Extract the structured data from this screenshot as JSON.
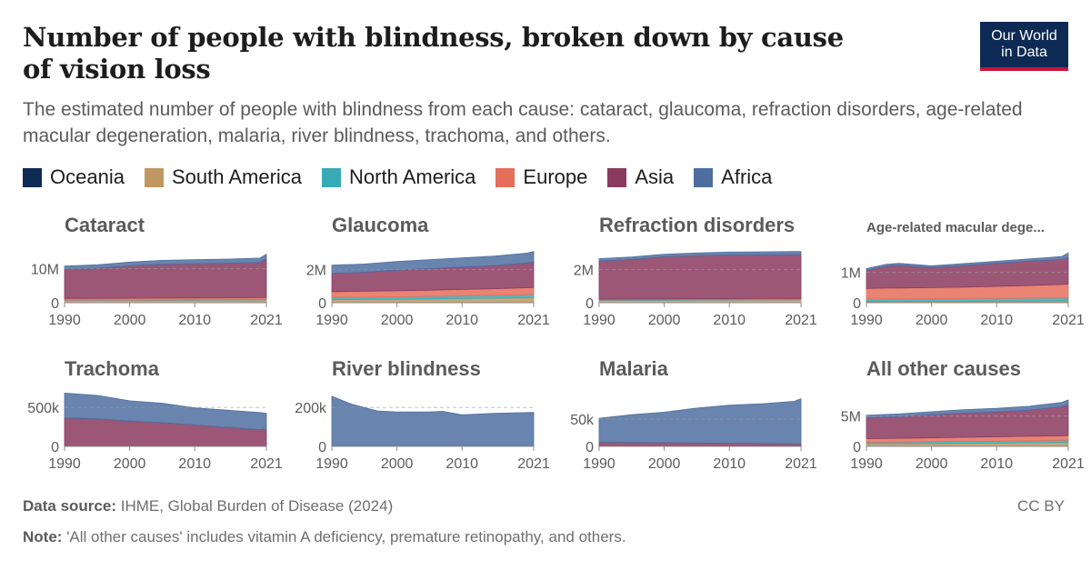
{
  "header": {
    "title": "Number of people with blindness, broken down by cause of vision loss",
    "subtitle": "The estimated number of people with blindness from each cause: cataract, glaucoma, refraction disorders, age-related macular degeneration, malaria, river blindness, trachoma, and others.",
    "logo_line1": "Our World",
    "logo_line2": "in Data"
  },
  "legend": [
    {
      "name": "Oceania",
      "color": "#0c2a54"
    },
    {
      "name": "South America",
      "color": "#c09760"
    },
    {
      "name": "North America",
      "color": "#38aab6"
    },
    {
      "name": "Europe",
      "color": "#e56e5a"
    },
    {
      "name": "Asia",
      "color": "#8b3a5f"
    },
    {
      "name": "Africa",
      "color": "#4f6ea0"
    }
  ],
  "footer": {
    "source_label": "Data source:",
    "source_text": "IHME, Global Burden of Disease (2024)",
    "note_label": "Note:",
    "note_text": "'All other causes' includes vitamin A deficiency, premature retinopathy, and others.",
    "license": "CC BY"
  },
  "chart_data": [
    {
      "type": "area",
      "title": "Cataract",
      "x": [
        1990,
        1995,
        2000,
        2005,
        2010,
        2015,
        2020,
        2021
      ],
      "ylim": [
        0,
        16000000
      ],
      "yticks": [
        0,
        10000000
      ],
      "ytick_labels": [
        "0",
        "10M"
      ],
      "xticks": [
        1990,
        2000,
        2010,
        2021
      ],
      "series": [
        {
          "name": "Oceania",
          "values": [
            30000,
            30000,
            35000,
            35000,
            40000,
            40000,
            45000,
            45000
          ]
        },
        {
          "name": "South America",
          "values": [
            600000,
            620000,
            650000,
            680000,
            700000,
            720000,
            750000,
            760000
          ]
        },
        {
          "name": "North America",
          "values": [
            120000,
            120000,
            125000,
            130000,
            135000,
            140000,
            145000,
            150000
          ]
        },
        {
          "name": "Europe",
          "values": [
            500000,
            510000,
            520000,
            530000,
            540000,
            550000,
            560000,
            570000
          ]
        },
        {
          "name": "Asia",
          "values": [
            8500000,
            8800000,
            9500000,
            9900000,
            10000000,
            10100000,
            10300000,
            11300000
          ]
        },
        {
          "name": "Africa",
          "values": [
            1000000,
            1050000,
            1100000,
            1150000,
            1200000,
            1250000,
            1300000,
            1400000
          ]
        }
      ]
    },
    {
      "type": "area",
      "title": "Glaucoma",
      "x": [
        1990,
        1995,
        2000,
        2005,
        2010,
        2015,
        2020,
        2021
      ],
      "ylim": [
        0,
        3300000
      ],
      "yticks": [
        0,
        2000000
      ],
      "ytick_labels": [
        "0",
        "2M"
      ],
      "xticks": [
        1990,
        2000,
        2010,
        2021
      ],
      "series": [
        {
          "name": "Oceania",
          "values": [
            10000,
            10000,
            10000,
            10000,
            15000,
            15000,
            15000,
            15000
          ]
        },
        {
          "name": "South America",
          "values": [
            180000,
            190000,
            200000,
            220000,
            240000,
            260000,
            290000,
            300000
          ]
        },
        {
          "name": "North America",
          "values": [
            130000,
            135000,
            140000,
            150000,
            160000,
            170000,
            180000,
            185000
          ]
        },
        {
          "name": "Europe",
          "values": [
            350000,
            360000,
            370000,
            380000,
            390000,
            400000,
            420000,
            430000
          ]
        },
        {
          "name": "Asia",
          "values": [
            1100000,
            1150000,
            1250000,
            1300000,
            1350000,
            1400000,
            1500000,
            1550000
          ]
        },
        {
          "name": "Africa",
          "values": [
            500000,
            500000,
            520000,
            540000,
            560000,
            580000,
            600000,
            610000
          ]
        }
      ]
    },
    {
      "type": "area",
      "title": "Refraction disorders",
      "x": [
        1990,
        1995,
        2000,
        2005,
        2010,
        2015,
        2020,
        2021
      ],
      "ylim": [
        0,
        3300000
      ],
      "yticks": [
        0,
        2000000
      ],
      "ytick_labels": [
        "0",
        "2M"
      ],
      "xticks": [
        1990,
        2000,
        2010,
        2021
      ],
      "series": [
        {
          "name": "Oceania",
          "values": [
            5000,
            5000,
            5000,
            5000,
            6000,
            6000,
            6000,
            6000
          ]
        },
        {
          "name": "South America",
          "values": [
            140000,
            145000,
            150000,
            155000,
            160000,
            165000,
            170000,
            170000
          ]
        },
        {
          "name": "North America",
          "values": [
            30000,
            30000,
            32000,
            33000,
            34000,
            35000,
            36000,
            36000
          ]
        },
        {
          "name": "Europe",
          "values": [
            40000,
            40000,
            42000,
            43000,
            44000,
            45000,
            46000,
            46000
          ]
        },
        {
          "name": "Asia",
          "values": [
            2300000,
            2400000,
            2550000,
            2600000,
            2650000,
            2650000,
            2650000,
            2650000
          ]
        },
        {
          "name": "Africa",
          "values": [
            150000,
            150000,
            160000,
            170000,
            170000,
            180000,
            190000,
            190000
          ]
        }
      ]
    },
    {
      "type": "area",
      "title": "Age-related macular dege...",
      "x": [
        1990,
        1993,
        1995,
        2000,
        2005,
        2010,
        2015,
        2020,
        2021
      ],
      "ylim": [
        0,
        1800000
      ],
      "yticks": [
        0,
        1000000
      ],
      "ytick_labels": [
        "0",
        "1M"
      ],
      "xticks": [
        1990,
        2000,
        2010,
        2021
      ],
      "series": [
        {
          "name": "Oceania",
          "values": [
            8000,
            8000,
            8000,
            8000,
            9000,
            9000,
            10000,
            10000,
            10000
          ]
        },
        {
          "name": "South America",
          "values": [
            30000,
            32000,
            33000,
            35000,
            37000,
            40000,
            42000,
            45000,
            45000
          ]
        },
        {
          "name": "North America",
          "values": [
            80000,
            82000,
            84000,
            85000,
            88000,
            90000,
            95000,
            100000,
            100000
          ]
        },
        {
          "name": "Europe",
          "values": [
            350000,
            360000,
            360000,
            370000,
            380000,
            400000,
            420000,
            450000,
            460000
          ]
        },
        {
          "name": "Asia",
          "values": [
            600000,
            720000,
            750000,
            660000,
            710000,
            760000,
            800000,
            820000,
            870000
          ]
        },
        {
          "name": "Africa",
          "values": [
            60000,
            65000,
            65000,
            60000,
            70000,
            70000,
            80000,
            100000,
            160000
          ]
        }
      ]
    },
    {
      "type": "area",
      "title": "Trachoma",
      "x": [
        1990,
        1995,
        2000,
        2005,
        2010,
        2015,
        2020,
        2021
      ],
      "ylim": [
        0,
        700000
      ],
      "yticks": [
        0,
        500000
      ],
      "ytick_labels": [
        "0",
        "500k"
      ],
      "xticks": [
        1990,
        2000,
        2010,
        2021
      ],
      "series": [
        {
          "name": "Oceania",
          "values": [
            1000,
            1000,
            1000,
            1000,
            1000,
            1000,
            1000,
            1000
          ]
        },
        {
          "name": "South America",
          "values": [
            2000,
            2000,
            2000,
            2000,
            2000,
            2000,
            2000,
            2000
          ]
        },
        {
          "name": "North America",
          "values": [
            0,
            0,
            0,
            0,
            0,
            0,
            0,
            0
          ]
        },
        {
          "name": "Europe",
          "values": [
            1000,
            1000,
            1000,
            1000,
            1000,
            1000,
            1000,
            1000
          ]
        },
        {
          "name": "Asia",
          "values": [
            360000,
            350000,
            320000,
            300000,
            270000,
            240000,
            210000,
            220000
          ]
        },
        {
          "name": "Africa",
          "values": [
            320000,
            300000,
            260000,
            250000,
            220000,
            220000,
            220000,
            200000
          ]
        }
      ]
    },
    {
      "type": "area",
      "title": "River blindness",
      "x": [
        1990,
        1993,
        1997,
        2000,
        2005,
        2007,
        2010,
        2015,
        2021
      ],
      "ylim": [
        0,
        280000
      ],
      "yticks": [
        0,
        200000
      ],
      "ytick_labels": [
        "0",
        "200k"
      ],
      "xticks": [
        1990,
        2000,
        2010,
        2021
      ],
      "series": [
        {
          "name": "Oceania",
          "values": [
            0,
            0,
            0,
            0,
            0,
            0,
            0,
            0,
            0
          ]
        },
        {
          "name": "South America",
          "values": [
            1000,
            1000,
            1000,
            1000,
            1000,
            1000,
            1000,
            1000,
            1000
          ]
        },
        {
          "name": "North America",
          "values": [
            0,
            0,
            0,
            0,
            0,
            0,
            0,
            0,
            0
          ]
        },
        {
          "name": "Europe",
          "values": [
            0,
            0,
            0,
            0,
            0,
            0,
            0,
            0,
            0
          ]
        },
        {
          "name": "Asia",
          "values": [
            1000,
            1000,
            1000,
            1000,
            1000,
            1000,
            1000,
            1000,
            1000
          ]
        },
        {
          "name": "Africa",
          "values": [
            255000,
            215000,
            180000,
            175000,
            175000,
            178000,
            160000,
            168000,
            172000
          ]
        }
      ]
    },
    {
      "type": "area",
      "title": "Malaria",
      "x": [
        1990,
        1995,
        2000,
        2005,
        2010,
        2015,
        2020,
        2021
      ],
      "ylim": [
        0,
        100000
      ],
      "yticks": [
        0,
        50000
      ],
      "ytick_labels": [
        "0",
        "50k"
      ],
      "xticks": [
        1990,
        2000,
        2010,
        2021
      ],
      "series": [
        {
          "name": "Oceania",
          "values": [
            300,
            300,
            300,
            300,
            300,
            300,
            300,
            300
          ]
        },
        {
          "name": "South America",
          "values": [
            300,
            300,
            300,
            300,
            300,
            300,
            300,
            300
          ]
        },
        {
          "name": "North America",
          "values": [
            0,
            0,
            0,
            0,
            0,
            0,
            0,
            0
          ]
        },
        {
          "name": "Europe",
          "values": [
            0,
            0,
            0,
            0,
            0,
            0,
            0,
            0
          ]
        },
        {
          "name": "Asia",
          "values": [
            7000,
            6500,
            6000,
            5500,
            5000,
            4500,
            4000,
            3800
          ]
        },
        {
          "name": "Africa",
          "values": [
            44000,
            51000,
            56000,
            64000,
            70000,
            73000,
            78000,
            83000
          ]
        }
      ]
    },
    {
      "type": "area",
      "title": "All other causes",
      "x": [
        1990,
        1995,
        2000,
        2005,
        2010,
        2015,
        2020,
        2021
      ],
      "ylim": [
        0,
        9000000
      ],
      "yticks": [
        0,
        5000000
      ],
      "ytick_labels": [
        "0",
        "5M"
      ],
      "xticks": [
        1990,
        2000,
        2010,
        2021
      ],
      "series": [
        {
          "name": "Oceania",
          "values": [
            30000,
            30000,
            32000,
            33000,
            35000,
            37000,
            40000,
            40000
          ]
        },
        {
          "name": "South America",
          "values": [
            400000,
            420000,
            450000,
            480000,
            520000,
            560000,
            600000,
            610000
          ]
        },
        {
          "name": "North America",
          "values": [
            250000,
            260000,
            280000,
            300000,
            320000,
            340000,
            360000,
            370000
          ]
        },
        {
          "name": "Europe",
          "values": [
            600000,
            620000,
            650000,
            680000,
            700000,
            730000,
            760000,
            780000
          ]
        },
        {
          "name": "Asia",
          "values": [
            3400000,
            3550000,
            3800000,
            4000000,
            4100000,
            4300000,
            4800000,
            5100000
          ]
        },
        {
          "name": "Africa",
          "values": [
            450000,
            470000,
            500000,
            550000,
            600000,
            650000,
            700000,
            750000
          ]
        }
      ]
    }
  ]
}
